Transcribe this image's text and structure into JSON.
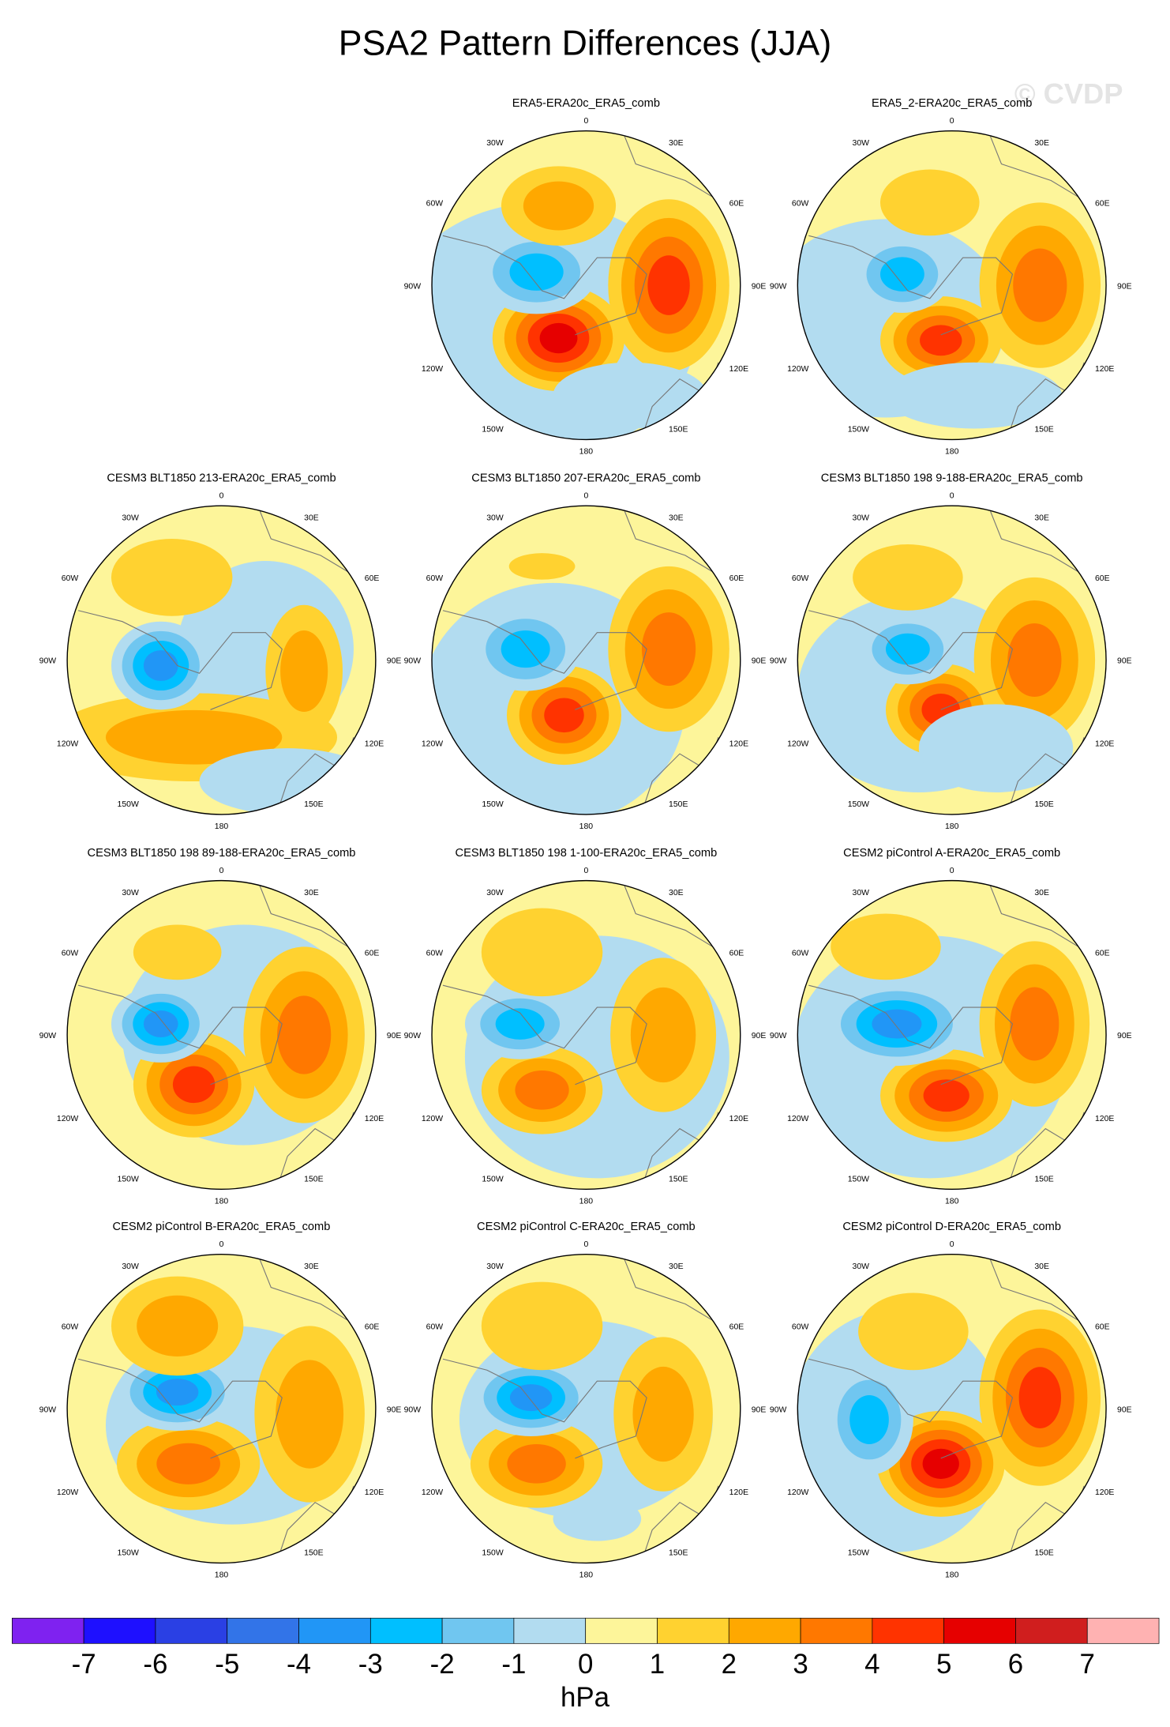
{
  "title": "PSA2 Pattern Differences (JJA)",
  "watermark": "© CVDP",
  "panels": [
    {
      "title": "ERA5-ERA20c_ERA5_comb"
    },
    {
      "title": "ERA5_2-ERA20c_ERA5_comb"
    },
    {
      "title": "CESM3 BLT1850 213-ERA20c_ERA5_comb"
    },
    {
      "title": "CESM3 BLT1850 207-ERA20c_ERA5_comb"
    },
    {
      "title": "CESM3 BLT1850 198 9-188-ERA20c_ERA5_comb"
    },
    {
      "title": "CESM3 BLT1850 198 89-188-ERA20c_ERA5_comb"
    },
    {
      "title": "CESM3 BLT1850 198 1-100-ERA20c_ERA5_comb"
    },
    {
      "title": "CESM2 piControl A-ERA20c_ERA5_comb"
    },
    {
      "title": "CESM2 piControl B-ERA20c_ERA5_comb"
    },
    {
      "title": "CESM2 piControl C-ERA20c_ERA5_comb"
    },
    {
      "title": "CESM2 piControl D-ERA20c_ERA5_comb"
    }
  ],
  "longitude_labels": [
    "0",
    "30E",
    "60E",
    "90E",
    "120E",
    "150E",
    "180",
    "150W",
    "120W",
    "90W",
    "60W",
    "30W"
  ],
  "colorbar": {
    "colors": [
      "#7f22f0",
      "#1e10ff",
      "#2a40e4",
      "#3274e8",
      "#2196f6",
      "#00bfff",
      "#70c6f0",
      "#b2dcf0",
      "#fdf59a",
      "#ffd230",
      "#ffa800",
      "#ff7800",
      "#ff3300",
      "#e60000",
      "#d01e1e",
      "#ffb2b2"
    ],
    "labels": [
      -7,
      -6,
      -5,
      -4,
      -3,
      -2,
      -1,
      0,
      1,
      2,
      3,
      4,
      5,
      6,
      7
    ],
    "unit": "hPa"
  }
}
